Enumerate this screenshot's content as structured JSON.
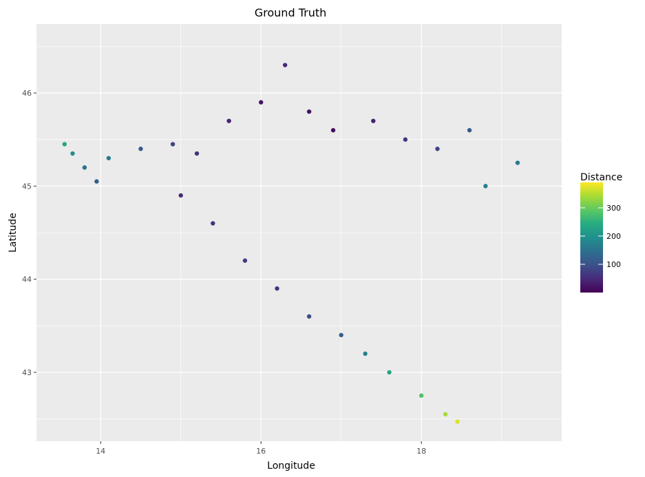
{
  "chart_data": {
    "type": "scatter",
    "title": "Ground Truth",
    "xlabel": "Longitude",
    "ylabel": "Latitude",
    "xlim": [
      13.2,
      19.75
    ],
    "ylim": [
      42.26,
      46.74
    ],
    "x_ticks": [
      14,
      16,
      18
    ],
    "y_ticks": [
      43,
      44,
      45,
      46
    ],
    "x_tick_labels": [
      "14",
      "16",
      "18"
    ],
    "y_tick_labels": [
      "43",
      "44",
      "45",
      "46"
    ],
    "grid": true,
    "colorbar": {
      "title": "Distance",
      "range": [
        0,
        390
      ],
      "ticks": [
        100,
        200,
        300
      ],
      "tick_labels": [
        "100",
        "200",
        "300"
      ],
      "colormap": "viridis",
      "placement": "right"
    },
    "points_note": "",
    "sample_points": [
      {
        "x": 13.55,
        "y": 45.45,
        "v": 230
      },
      {
        "x": 13.65,
        "y": 45.35,
        "v": 190
      },
      {
        "x": 13.8,
        "y": 45.2,
        "v": 150
      },
      {
        "x": 13.95,
        "y": 45.05,
        "v": 120
      },
      {
        "x": 14.1,
        "y": 45.3,
        "v": 160
      },
      {
        "x": 14.5,
        "y": 45.4,
        "v": 110
      },
      {
        "x": 14.9,
        "y": 45.45,
        "v": 80
      },
      {
        "x": 15.2,
        "y": 45.35,
        "v": 60
      },
      {
        "x": 15.6,
        "y": 45.7,
        "v": 40
      },
      {
        "x": 16.0,
        "y": 45.9,
        "v": 25
      },
      {
        "x": 16.3,
        "y": 46.3,
        "v": 50
      },
      {
        "x": 16.6,
        "y": 45.8,
        "v": 20
      },
      {
        "x": 16.9,
        "y": 45.6,
        "v": 15
      },
      {
        "x": 17.4,
        "y": 45.7,
        "v": 40
      },
      {
        "x": 17.8,
        "y": 45.5,
        "v": 60
      },
      {
        "x": 18.2,
        "y": 45.4,
        "v": 80
      },
      {
        "x": 18.6,
        "y": 45.6,
        "v": 110
      },
      {
        "x": 18.8,
        "y": 45.0,
        "v": 170
      },
      {
        "x": 19.2,
        "y": 45.25,
        "v": 160
      },
      {
        "x": 15.0,
        "y": 44.9,
        "v": 50
      },
      {
        "x": 15.4,
        "y": 44.6,
        "v": 60
      },
      {
        "x": 15.8,
        "y": 44.2,
        "v": 70
      },
      {
        "x": 16.2,
        "y": 43.9,
        "v": 60
      },
      {
        "x": 16.6,
        "y": 43.6,
        "v": 90
      },
      {
        "x": 17.0,
        "y": 43.4,
        "v": 120
      },
      {
        "x": 17.3,
        "y": 43.2,
        "v": 170
      },
      {
        "x": 17.6,
        "y": 43.0,
        "v": 230
      },
      {
        "x": 18.0,
        "y": 42.75,
        "v": 280
      },
      {
        "x": 18.3,
        "y": 42.55,
        "v": 340
      },
      {
        "x": 18.45,
        "y": 42.47,
        "v": 370
      }
    ]
  }
}
